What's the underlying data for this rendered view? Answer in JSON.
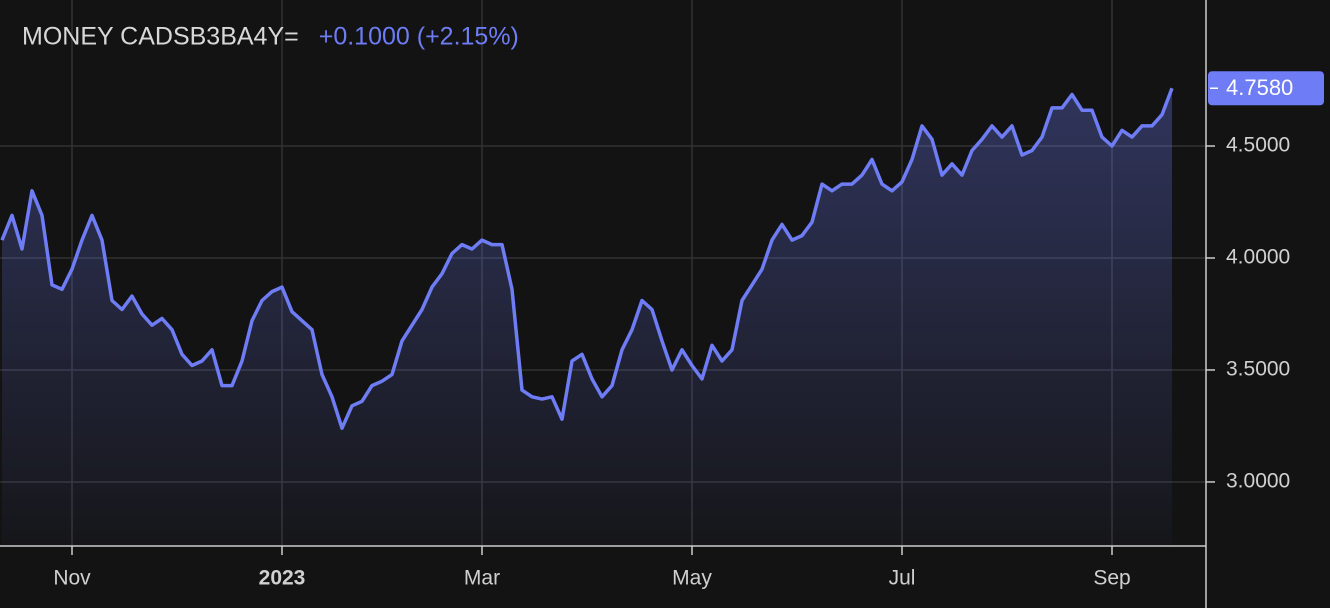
{
  "chart_data": {
    "type": "line",
    "title": "MONEY CADSB3BA4Y=",
    "change_label": "+0.1000 (+2.15%)",
    "last_value_label": "4.7580",
    "categories": [
      null,
      null,
      null,
      null,
      null,
      null,
      null,
      "Nov",
      null,
      null,
      null,
      null,
      null,
      null,
      null,
      null,
      null,
      null,
      null,
      null,
      null,
      null,
      null,
      null,
      null,
      null,
      null,
      null,
      "2023",
      null,
      null,
      null,
      null,
      null,
      null,
      null,
      null,
      null,
      null,
      null,
      null,
      null,
      null,
      null,
      null,
      null,
      null,
      null,
      "Mar",
      null,
      null,
      null,
      null,
      null,
      null,
      null,
      null,
      null,
      null,
      null,
      null,
      null,
      null,
      null,
      null,
      null,
      null,
      null,
      null,
      "May",
      null,
      null,
      null,
      null,
      null,
      null,
      null,
      null,
      null,
      null,
      null,
      null,
      null,
      null,
      null,
      null,
      null,
      null,
      null,
      null,
      "Jul",
      null,
      null,
      null,
      null,
      null,
      null,
      null,
      null,
      null,
      null,
      null,
      null,
      null,
      null,
      null,
      null,
      null,
      null,
      null,
      null,
      "Sep",
      null,
      null,
      null,
      null,
      null,
      null
    ],
    "series": [
      {
        "name": "CADSB3BA4Y=",
        "color": "#6e7cf6",
        "values": [
          4.08,
          4.19,
          4.04,
          4.3,
          4.19,
          3.88,
          3.86,
          3.95,
          4.08,
          4.19,
          4.08,
          3.81,
          3.77,
          3.83,
          3.75,
          3.7,
          3.73,
          3.68,
          3.57,
          3.52,
          3.54,
          3.59,
          3.43,
          3.43,
          3.54,
          3.72,
          3.81,
          3.85,
          3.87,
          3.76,
          3.72,
          3.68,
          3.48,
          3.38,
          3.24,
          3.34,
          3.36,
          3.43,
          3.45,
          3.48,
          3.63,
          3.7,
          3.77,
          3.87,
          3.93,
          4.02,
          4.06,
          4.04,
          4.08,
          4.06,
          4.06,
          3.86,
          3.41,
          3.38,
          3.37,
          3.38,
          3.28,
          3.54,
          3.57,
          3.46,
          3.38,
          3.43,
          3.59,
          3.68,
          3.81,
          3.77,
          3.63,
          3.5,
          3.59,
          3.52,
          3.46,
          3.61,
          3.54,
          3.59,
          3.81,
          3.88,
          3.95,
          4.08,
          4.15,
          4.08,
          4.1,
          4.16,
          4.33,
          4.3,
          4.33,
          4.33,
          4.37,
          4.44,
          4.33,
          4.3,
          4.34,
          4.44,
          4.59,
          4.53,
          4.37,
          4.42,
          4.37,
          4.48,
          4.53,
          4.59,
          4.54,
          4.59,
          4.46,
          4.48,
          4.54,
          4.67,
          4.67,
          4.73,
          4.66,
          4.66,
          4.54,
          4.5,
          4.57,
          4.54,
          4.59,
          4.59,
          4.64,
          4.758
        ]
      }
    ],
    "ylim": [
      2.714,
      5.152
    ],
    "yticks": [
      {
        "value": 3,
        "label": "3.0000"
      },
      {
        "value": 3.5,
        "label": "3.5000"
      },
      {
        "value": 4,
        "label": "4.0000"
      },
      {
        "value": 4.5,
        "label": "4.5000"
      }
    ],
    "grid": true
  }
}
